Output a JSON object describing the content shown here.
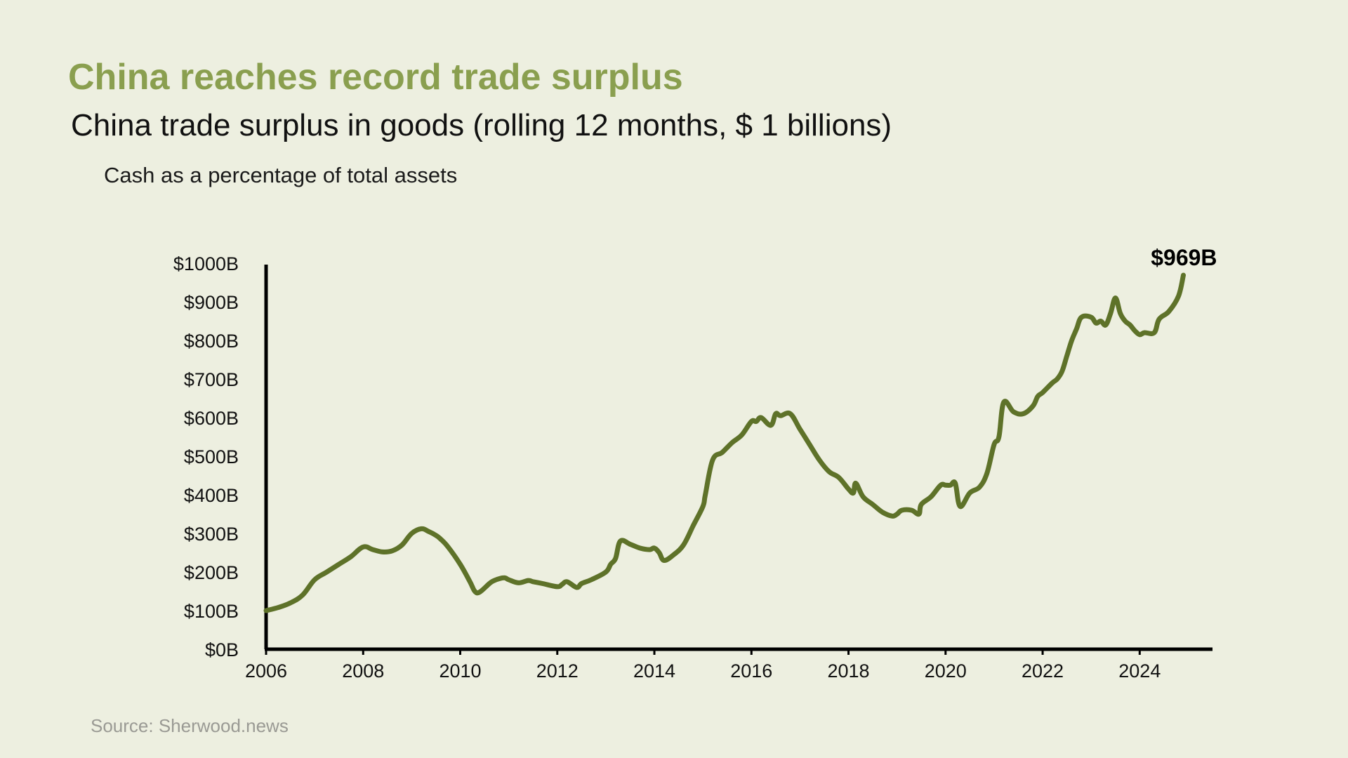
{
  "header": {
    "title": "China reaches record trade surplus",
    "subtitle": "China trade surplus in goods (rolling 12 months, $ 1 billions)",
    "note": "Cash as a percentage of total assets"
  },
  "footer": {
    "source": "Source: Sherwood.news"
  },
  "colors": {
    "line": "#5e7229",
    "title": "#8a9f4f",
    "background": "#edefe0",
    "axis": "#000000"
  },
  "chart_data": {
    "type": "line",
    "title": "China reaches record trade surplus",
    "subtitle": "China trade surplus in goods (rolling 12 months, $ 1 billions)",
    "xlabel": "",
    "ylabel": "",
    "xlim": [
      2006,
      2025.5
    ],
    "ylim": [
      0,
      1000
    ],
    "grid": false,
    "legend": "none",
    "x_ticks": [
      2006,
      2008,
      2010,
      2012,
      2014,
      2016,
      2018,
      2020,
      2022,
      2024
    ],
    "x_tick_labels": [
      "2006",
      "2008",
      "2010",
      "2012",
      "2014",
      "2016",
      "2018",
      "2020",
      "2022",
      "2024"
    ],
    "y_ticks": [
      0,
      100,
      200,
      300,
      400,
      500,
      600,
      700,
      800,
      900,
      1000
    ],
    "y_tick_labels": [
      "$0B",
      "$100B",
      "$200B",
      "$300B",
      "$400B",
      "$500B",
      "$600B",
      "$700B",
      "$800B",
      "$900B",
      "$1000B"
    ],
    "series": [
      {
        "x": [
          2006.0,
          2006.25,
          2006.5,
          2006.75,
          2007.0,
          2007.25,
          2007.5,
          2007.75,
          2008.0,
          2008.2,
          2008.4,
          2008.6,
          2008.8,
          2009.0,
          2009.2,
          2009.35,
          2009.5,
          2009.6,
          2009.75,
          2010.0,
          2010.2,
          2010.3,
          2010.4,
          2010.6,
          2010.7,
          2010.9,
          2011.0,
          2011.2,
          2011.4,
          2011.5,
          2011.7,
          2012.0,
          2012.1,
          2012.2,
          2012.4,
          2012.5,
          2012.7,
          2013.0,
          2013.1,
          2013.2,
          2013.3,
          2013.5,
          2013.7,
          2013.9,
          2014.0,
          2014.1,
          2014.2,
          2014.4,
          2014.6,
          2014.8,
          2015.0,
          2015.05,
          2015.2,
          2015.4,
          2015.6,
          2015.8,
          2016.0,
          2016.1,
          2016.2,
          2016.4,
          2016.5,
          2016.6,
          2016.8,
          2017.0,
          2017.2,
          2017.4,
          2017.6,
          2017.8,
          2018.0,
          2018.1,
          2018.15,
          2018.3,
          2018.5,
          2018.7,
          2018.9,
          2019.0,
          2019.1,
          2019.3,
          2019.45,
          2019.5,
          2019.7,
          2019.9,
          2020.0,
          2020.1,
          2020.2,
          2020.3,
          2020.5,
          2020.7,
          2020.85,
          2021.0,
          2021.1,
          2021.2,
          2021.4,
          2021.6,
          2021.8,
          2021.9,
          2022.0,
          2022.2,
          2022.3,
          2022.4,
          2022.5,
          2022.6,
          2022.7,
          2022.8,
          2023.0,
          2023.1,
          2023.2,
          2023.3,
          2023.4,
          2023.5,
          2023.6,
          2023.7,
          2023.8,
          2023.9,
          2024.0,
          2024.1,
          2024.3,
          2024.4,
          2024.6,
          2024.8,
          2024.9
        ],
        "values": [
          100,
          108,
          120,
          140,
          180,
          200,
          220,
          240,
          265,
          258,
          252,
          255,
          270,
          300,
          312,
          305,
          295,
          285,
          265,
          220,
          175,
          150,
          148,
          170,
          178,
          185,
          180,
          172,
          178,
          175,
          170,
          162,
          168,
          175,
          160,
          170,
          180,
          200,
          220,
          235,
          280,
          272,
          262,
          258,
          262,
          250,
          230,
          245,
          270,
          320,
          370,
          400,
          490,
          510,
          535,
          555,
          590,
          590,
          600,
          580,
          610,
          605,
          610,
          570,
          530,
          490,
          460,
          445,
          415,
          405,
          430,
          395,
          375,
          355,
          345,
          350,
          360,
          360,
          350,
          375,
          395,
          425,
          425,
          425,
          430,
          370,
          405,
          420,
          455,
          530,
          550,
          640,
          615,
          610,
          630,
          655,
          665,
          690,
          700,
          720,
          760,
          800,
          830,
          860,
          860,
          845,
          850,
          840,
          870,
          910,
          870,
          850,
          840,
          825,
          815,
          820,
          820,
          855,
          875,
          915,
          969
        ]
      }
    ],
    "annotations": [
      {
        "text": "$969B",
        "x": 2024.9,
        "y": 969
      }
    ]
  }
}
